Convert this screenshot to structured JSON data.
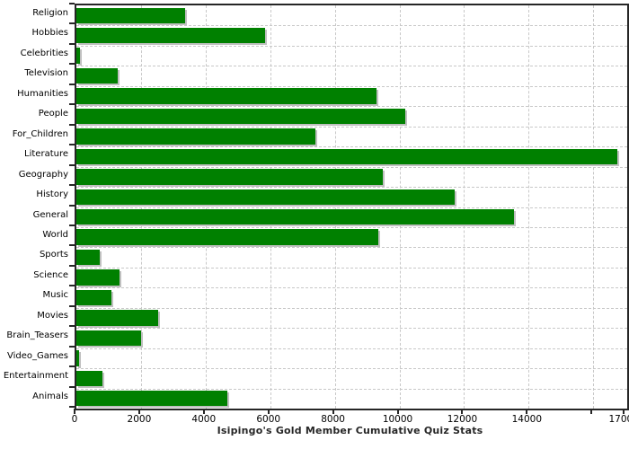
{
  "chart_data": {
    "type": "bar",
    "orientation": "horizontal",
    "title": "Isipingo's Gold Member Cumulative Quiz Stats",
    "xlabel": "",
    "ylabel": "",
    "categories": [
      "Religion",
      "Hobbies",
      "Celebrities",
      "Television",
      "Humanities",
      "People",
      "For_Children",
      "Literature",
      "Geography",
      "History",
      "General",
      "World",
      "Sports",
      "Science",
      "Music",
      "Movies",
      "Brain_Teasers",
      "Video_Games",
      "Entertainment",
      "Animals"
    ],
    "values": [
      3360,
      5830,
      120,
      1290,
      9290,
      10190,
      7390,
      16730,
      9480,
      11720,
      13550,
      9340,
      710,
      1330,
      1090,
      2530,
      2010,
      90,
      810,
      4670
    ],
    "xlim": [
      0,
      17050
    ],
    "x_tick_step": 2000,
    "x_tick_labels": [
      "0",
      "2000",
      "4000",
      "6000",
      "8000",
      "10000",
      "12000",
      "14000"
    ],
    "x_unlabeled_tick_value": 16000,
    "x_axis_end_value": 17000,
    "x_axis_end_label": "17000",
    "grid": "dashed-both-axes",
    "legend": "none",
    "colors": {
      "bar": "#008000",
      "bar_shadow": "#c0c0c0",
      "gridline": "#c8c8c8",
      "axis": "#262626",
      "text": "#000000",
      "background": "#ffffff"
    }
  }
}
